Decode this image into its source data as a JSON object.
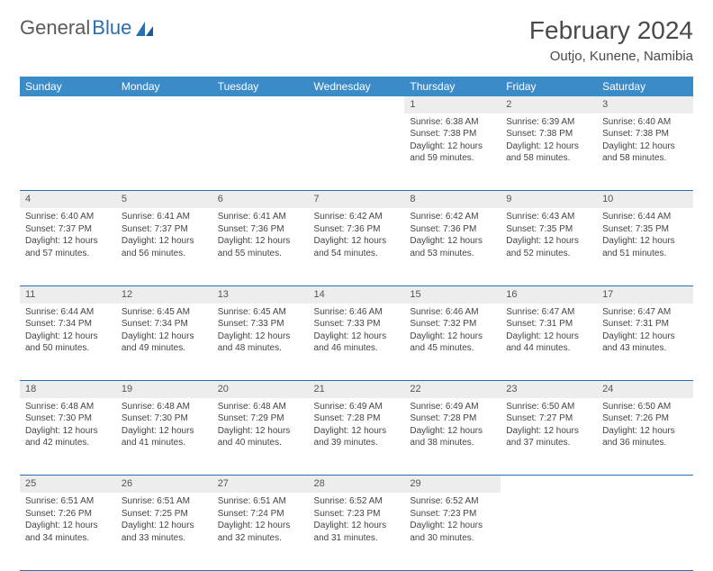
{
  "logo": {
    "text1": "General",
    "text2": "Blue"
  },
  "title": "February 2024",
  "location": "Outjo, Kunene, Namibia",
  "colors": {
    "header_bg": "#3b8bc9",
    "header_text": "#ffffff",
    "daynum_bg": "#ededed",
    "rule": "#2a6fb0",
    "logo_gray": "#5a5a5a",
    "logo_blue": "#2a6fb0",
    "body_text": "#444444"
  },
  "weekdays": [
    "Sunday",
    "Monday",
    "Tuesday",
    "Wednesday",
    "Thursday",
    "Friday",
    "Saturday"
  ],
  "layout": {
    "first_weekday_index": 4,
    "days_in_month": 29,
    "cols": 7,
    "rows": 5
  },
  "days": {
    "1": {
      "sunrise": "6:38 AM",
      "sunset": "7:38 PM",
      "daylight": "12 hours and 59 minutes."
    },
    "2": {
      "sunrise": "6:39 AM",
      "sunset": "7:38 PM",
      "daylight": "12 hours and 58 minutes."
    },
    "3": {
      "sunrise": "6:40 AM",
      "sunset": "7:38 PM",
      "daylight": "12 hours and 58 minutes."
    },
    "4": {
      "sunrise": "6:40 AM",
      "sunset": "7:37 PM",
      "daylight": "12 hours and 57 minutes."
    },
    "5": {
      "sunrise": "6:41 AM",
      "sunset": "7:37 PM",
      "daylight": "12 hours and 56 minutes."
    },
    "6": {
      "sunrise": "6:41 AM",
      "sunset": "7:36 PM",
      "daylight": "12 hours and 55 minutes."
    },
    "7": {
      "sunrise": "6:42 AM",
      "sunset": "7:36 PM",
      "daylight": "12 hours and 54 minutes."
    },
    "8": {
      "sunrise": "6:42 AM",
      "sunset": "7:36 PM",
      "daylight": "12 hours and 53 minutes."
    },
    "9": {
      "sunrise": "6:43 AM",
      "sunset": "7:35 PM",
      "daylight": "12 hours and 52 minutes."
    },
    "10": {
      "sunrise": "6:44 AM",
      "sunset": "7:35 PM",
      "daylight": "12 hours and 51 minutes."
    },
    "11": {
      "sunrise": "6:44 AM",
      "sunset": "7:34 PM",
      "daylight": "12 hours and 50 minutes."
    },
    "12": {
      "sunrise": "6:45 AM",
      "sunset": "7:34 PM",
      "daylight": "12 hours and 49 minutes."
    },
    "13": {
      "sunrise": "6:45 AM",
      "sunset": "7:33 PM",
      "daylight": "12 hours and 48 minutes."
    },
    "14": {
      "sunrise": "6:46 AM",
      "sunset": "7:33 PM",
      "daylight": "12 hours and 46 minutes."
    },
    "15": {
      "sunrise": "6:46 AM",
      "sunset": "7:32 PM",
      "daylight": "12 hours and 45 minutes."
    },
    "16": {
      "sunrise": "6:47 AM",
      "sunset": "7:31 PM",
      "daylight": "12 hours and 44 minutes."
    },
    "17": {
      "sunrise": "6:47 AM",
      "sunset": "7:31 PM",
      "daylight": "12 hours and 43 minutes."
    },
    "18": {
      "sunrise": "6:48 AM",
      "sunset": "7:30 PM",
      "daylight": "12 hours and 42 minutes."
    },
    "19": {
      "sunrise": "6:48 AM",
      "sunset": "7:30 PM",
      "daylight": "12 hours and 41 minutes."
    },
    "20": {
      "sunrise": "6:48 AM",
      "sunset": "7:29 PM",
      "daylight": "12 hours and 40 minutes."
    },
    "21": {
      "sunrise": "6:49 AM",
      "sunset": "7:28 PM",
      "daylight": "12 hours and 39 minutes."
    },
    "22": {
      "sunrise": "6:49 AM",
      "sunset": "7:28 PM",
      "daylight": "12 hours and 38 minutes."
    },
    "23": {
      "sunrise": "6:50 AM",
      "sunset": "7:27 PM",
      "daylight": "12 hours and 37 minutes."
    },
    "24": {
      "sunrise": "6:50 AM",
      "sunset": "7:26 PM",
      "daylight": "12 hours and 36 minutes."
    },
    "25": {
      "sunrise": "6:51 AM",
      "sunset": "7:26 PM",
      "daylight": "12 hours and 34 minutes."
    },
    "26": {
      "sunrise": "6:51 AM",
      "sunset": "7:25 PM",
      "daylight": "12 hours and 33 minutes."
    },
    "27": {
      "sunrise": "6:51 AM",
      "sunset": "7:24 PM",
      "daylight": "12 hours and 32 minutes."
    },
    "28": {
      "sunrise": "6:52 AM",
      "sunset": "7:23 PM",
      "daylight": "12 hours and 31 minutes."
    },
    "29": {
      "sunrise": "6:52 AM",
      "sunset": "7:23 PM",
      "daylight": "12 hours and 30 minutes."
    }
  },
  "labels": {
    "sunrise": "Sunrise:",
    "sunset": "Sunset:",
    "daylight": "Daylight:"
  }
}
